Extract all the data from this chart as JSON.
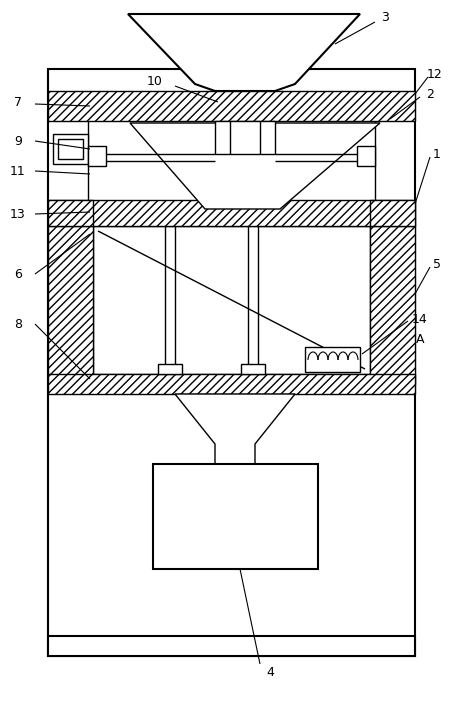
{
  "fig_width": 4.57,
  "fig_height": 7.14,
  "dpi": 100,
  "bg_color": "#ffffff",
  "lc": "#000000"
}
